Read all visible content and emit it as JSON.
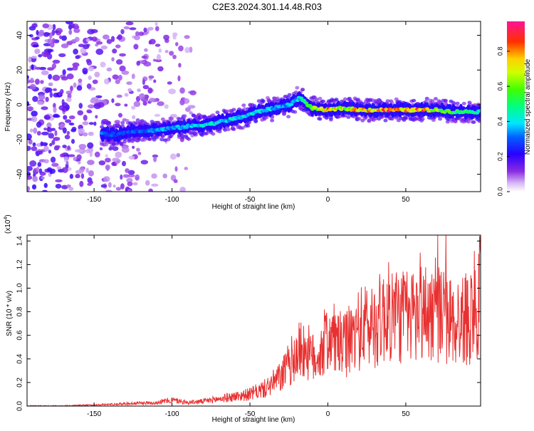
{
  "title": "C2E3.2024.301.14.48.R03",
  "chart_data": [
    {
      "type": "heatmap",
      "xlabel": "Height of straight line (km)",
      "ylabel": "Frequency (Hz)",
      "xlim": [
        -193,
        98
      ],
      "ylim": [
        -50,
        48
      ],
      "xticks": [
        "-150",
        "-100",
        "-50",
        "0",
        "50"
      ],
      "xtick_values": [
        -150,
        -100,
        -50,
        0,
        50
      ],
      "yticks": [
        "-40",
        "-20",
        "0",
        "20",
        "40"
      ],
      "ytick_values": [
        -40,
        -20,
        0,
        20,
        40
      ],
      "colorbar": {
        "label": "Normalized spectral amplitude",
        "range": [
          0,
          0.97
        ],
        "ticks": [
          "0.0",
          "0.2",
          "0.4",
          "0.6",
          "0.8"
        ],
        "tick_values": [
          0.0,
          0.2,
          0.4,
          0.6,
          0.8
        ]
      },
      "ridge": {
        "height_km": [
          -145,
          -135,
          -125,
          -115,
          -105,
          -95,
          -85,
          -75,
          -65,
          -55,
          -45,
          -35,
          -25,
          -18,
          -10,
          0,
          10,
          20,
          30,
          40,
          50,
          60,
          70,
          80,
          90,
          98
        ],
        "frequency_hz": [
          -17,
          -17,
          -15,
          -15,
          -14,
          -13,
          -12,
          -11,
          -9,
          -7,
          -4,
          -2,
          0,
          4,
          -2,
          -3,
          -2,
          -3,
          -3,
          -3,
          -3,
          -3,
          -3,
          -4,
          -4,
          -4
        ],
        "amplitude": [
          0.35,
          0.3,
          0.32,
          0.35,
          0.38,
          0.4,
          0.42,
          0.45,
          0.45,
          0.45,
          0.45,
          0.4,
          0.4,
          0.45,
          0.65,
          0.85,
          0.75,
          0.9,
          0.8,
          0.95,
          0.85,
          0.95,
          0.7,
          0.6,
          0.55,
          0.5
        ]
      },
      "noise_region_km": [
        -193,
        -85
      ],
      "grid": false
    },
    {
      "type": "line",
      "xlabel": "Height of straight line (km)",
      "ylabel": "SNR (10 * v/v)",
      "scale_label": "(x10",
      "scale_exponent": "4",
      "xlim": [
        -193,
        98
      ],
      "ylim": [
        0,
        1.45
      ],
      "xticks": [
        "-150",
        "-100",
        "-50",
        "0",
        "50"
      ],
      "xtick_values": [
        -150,
        -100,
        -50,
        0,
        50
      ],
      "yticks": [
        "0.0",
        "0.2",
        "0.4",
        "0.6",
        "0.8",
        "1.0",
        "1.2",
        "1.4"
      ],
      "ytick_values": [
        0.0,
        0.2,
        0.4,
        0.6,
        0.8,
        1.0,
        1.2,
        1.4
      ],
      "color": "#e83030",
      "series": [
        {
          "x": [
            -193,
            -170,
            -150,
            -130,
            -110,
            -100,
            -90,
            -80,
            -70,
            -60,
            -50,
            -40,
            -30,
            -25,
            -20,
            -15,
            -10,
            -5,
            0,
            10,
            20,
            30,
            40,
            50,
            60,
            70,
            80,
            90,
            98
          ],
          "y": [
            0.0,
            0.0,
            0.01,
            0.02,
            0.03,
            0.05,
            0.03,
            0.04,
            0.06,
            0.08,
            0.1,
            0.15,
            0.25,
            0.35,
            0.45,
            0.5,
            0.4,
            0.45,
            0.6,
            0.5,
            0.65,
            0.7,
            0.8,
            0.75,
            0.8,
            0.8,
            0.7,
            0.75,
            0.95
          ]
        }
      ],
      "grid": false
    }
  ]
}
